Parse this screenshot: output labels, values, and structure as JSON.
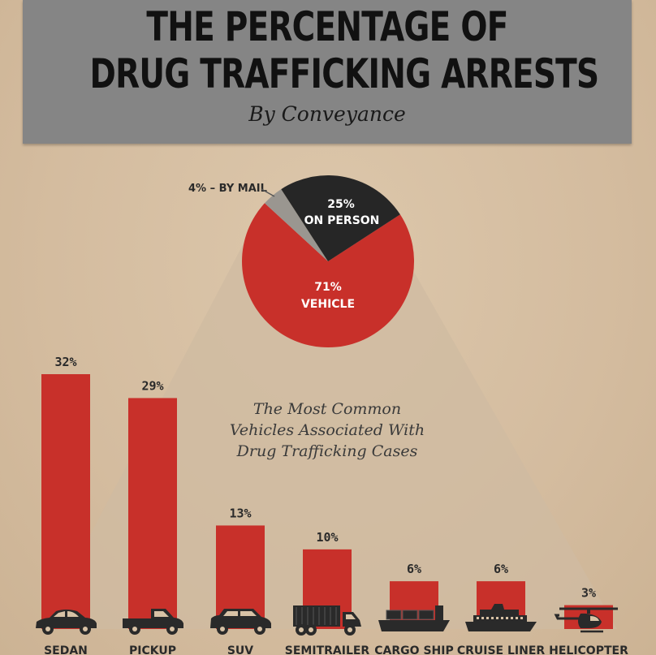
{
  "header": {
    "title_line1": "THE PERCENTAGE OF",
    "title_line2": "DRUG TRAFFICKING ARRESTS",
    "subtitle": "By Conveyance"
  },
  "colors": {
    "red": "#c8302a",
    "dark": "#262626",
    "gray": "#9a9690",
    "header_bg": "#858585",
    "wedge": "#cfbba1"
  },
  "chart_data": [
    {
      "type": "pie",
      "title": "By Conveyance",
      "slices": [
        {
          "label": "VEHICLE",
          "value": 71,
          "display": "71%",
          "color": "#c8302a"
        },
        {
          "label": "BY MAIL",
          "value": 4,
          "display": "4% – BY MAIL",
          "color": "#9a9690"
        },
        {
          "label": "ON PERSON",
          "value": 25,
          "display": "25%",
          "color": "#262626"
        }
      ]
    },
    {
      "type": "bar",
      "title": "The Most Common Vehicles Associated With Drug Trafficking Cases",
      "title_lines": [
        "The Most Common",
        "Vehicles Associated With",
        "Drug Trafficking Cases"
      ],
      "categories": [
        "SEDAN",
        "PICKUP",
        "SUV",
        "SEMITRAILER",
        "CARGO SHIP",
        "CRUISE LINER",
        "HELICOPTER"
      ],
      "icons": [
        "sedan-icon",
        "pickup-icon",
        "suv-icon",
        "semitrailer-icon",
        "cargo-ship-icon",
        "cruise-liner-icon",
        "helicopter-icon"
      ],
      "values": [
        32,
        29,
        13,
        10,
        6,
        6,
        3
      ],
      "value_labels": [
        "32%",
        "29%",
        "13%",
        "10%",
        "6%",
        "6%",
        "3%"
      ],
      "ylim": [
        0,
        32
      ]
    }
  ]
}
